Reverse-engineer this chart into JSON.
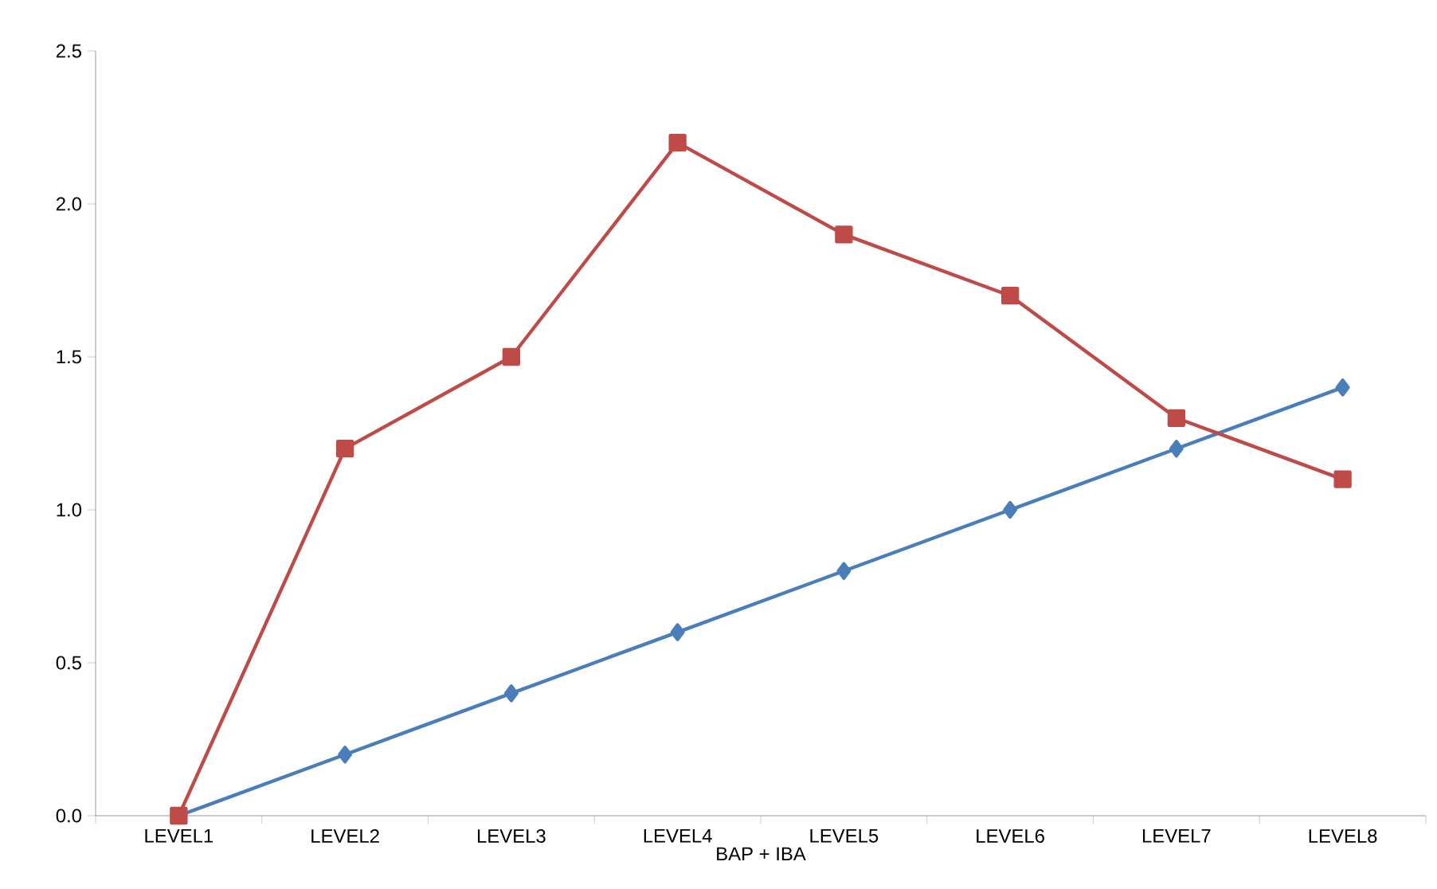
{
  "chart_data": {
    "type": "line",
    "xlabel": "BAP + IBA",
    "categories": [
      "LEVEL1",
      "LEVEL2",
      "LEVEL3",
      "LEVEL4",
      "LEVEL5",
      "LEVEL6",
      "LEVEL7",
      "LEVEL8"
    ],
    "series": [
      {
        "color": "#4a7ebb",
        "marker": "diamond",
        "values": [
          0,
          0.2,
          0.4,
          0.6,
          0.8,
          1.0,
          1.2,
          1.4
        ]
      },
      {
        "color": "#be4b48",
        "marker": "square",
        "values": [
          0,
          1.2,
          1.5,
          2.2,
          1.9,
          1.7,
          1.3,
          1.1
        ]
      }
    ],
    "ylim": [
      0,
      2.5
    ],
    "yticks": [
      {
        "value": 0,
        "label": "0.0"
      },
      {
        "value": 0.5,
        "label": "0.5"
      },
      {
        "value": 1,
        "label": "1.0"
      },
      {
        "value": 1.5,
        "label": "1.5"
      },
      {
        "value": 2,
        "label": "2.0"
      },
      {
        "value": 2.5,
        "label": "2.5"
      }
    ],
    "grid": false,
    "line_style": "solid"
  }
}
